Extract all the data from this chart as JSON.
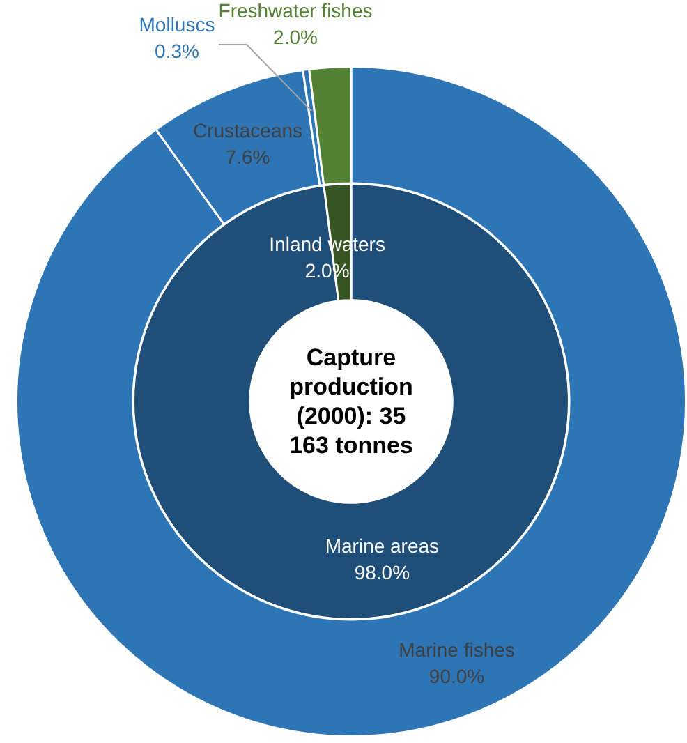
{
  "chart_data": [
    {
      "type": "donut",
      "title": "Capture production (2000): 35 163 tonnes",
      "categories": [
        "Marine areas",
        "Inland waters"
      ],
      "values": [
        98.0,
        2.0
      ],
      "value_labels": [
        "98.0%",
        "2.0%"
      ],
      "colors": [
        "#1f4e79",
        "#375623"
      ],
      "legend": false
    },
    {
      "type": "donut",
      "categories": [
        "Marine fishes",
        "Crustaceans",
        "Molluscs",
        "Freshwater fishes"
      ],
      "values": [
        90.0,
        7.6,
        0.3,
        2.0
      ],
      "value_labels": [
        "90.0%",
        "7.6%",
        "0.3%",
        "2.0%"
      ],
      "colors": [
        "#2e75b6",
        "#2e75b6",
        "#2e75b6",
        "#548235"
      ],
      "legend": false
    }
  ]
}
